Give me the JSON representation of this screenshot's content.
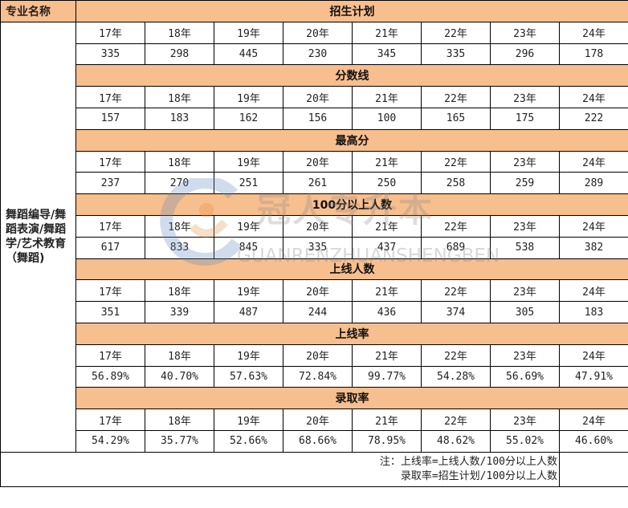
{
  "header": {
    "major_label": "专业名称"
  },
  "major_name": "舞蹈编导/舞蹈表演/舞蹈学/艺术教育（舞蹈)",
  "years": [
    "17年",
    "18年",
    "19年",
    "20年",
    "21年",
    "22年",
    "23年",
    "24年"
  ],
  "sections": [
    {
      "title": "招生计划",
      "values": [
        "335",
        "298",
        "445",
        "230",
        "345",
        "335",
        "296",
        "178"
      ]
    },
    {
      "title": "分数线",
      "values": [
        "157",
        "183",
        "162",
        "156",
        "100",
        "165",
        "175",
        "222"
      ]
    },
    {
      "title": "最高分",
      "values": [
        "237",
        "270",
        "251",
        "261",
        "250",
        "258",
        "259",
        "289"
      ]
    },
    {
      "title": "100分以上人数",
      "values": [
        "617",
        "833",
        "845",
        "335",
        "437",
        "689",
        "538",
        "382"
      ]
    },
    {
      "title": "上线人数",
      "values": [
        "351",
        "339",
        "487",
        "244",
        "436",
        "374",
        "305",
        "183"
      ]
    },
    {
      "title": "上线率",
      "values": [
        "56.89%",
        "40.70%",
        "57.63%",
        "72.84%",
        "99.77%",
        "54.28%",
        "56.69%",
        "47.91%"
      ]
    },
    {
      "title": "录取率",
      "values": [
        "54.29%",
        "35.77%",
        "52.66%",
        "68.66%",
        "78.95%",
        "48.62%",
        "55.02%",
        "46.60%"
      ]
    }
  ],
  "note": {
    "line1": "注：上线率=上线人数/100分以上人数",
    "line2": "录取率=招生计划/100分以上人数"
  },
  "watermark": {
    "cn": "冠人专升本",
    "en": "GUANRENZHUANSHENGBEN"
  },
  "colors": {
    "section_header": "#f7be8e"
  }
}
